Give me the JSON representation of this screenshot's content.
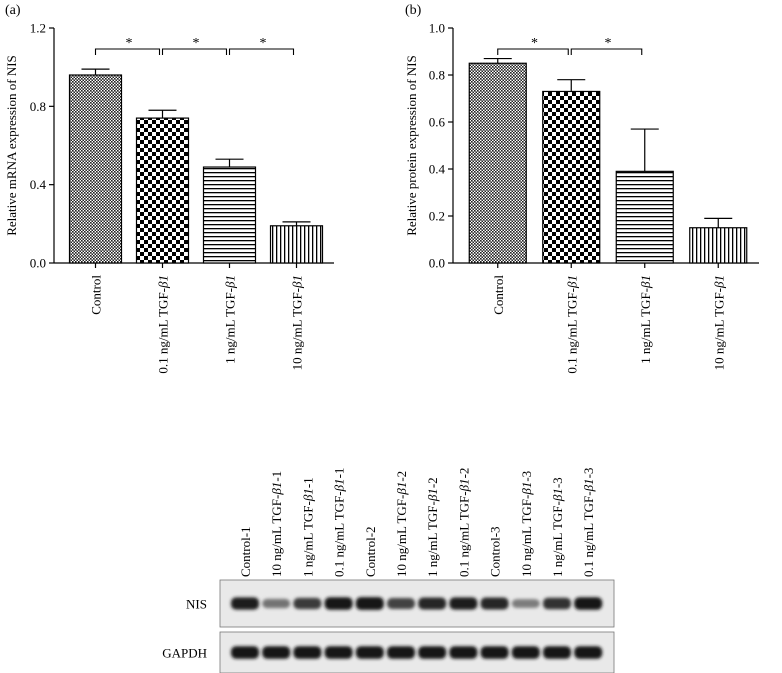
{
  "panel_labels": [
    "(a)",
    "(b)"
  ],
  "chart_data": [
    {
      "type": "bar",
      "panel": "(a)",
      "ylabel": "Relative mRNA expression of NIS",
      "ylim": [
        0,
        1.2
      ],
      "yticks": [
        0.0,
        0.4,
        0.8,
        1.2
      ],
      "ytick_labels": [
        "0.0",
        "0.4",
        "0.8",
        "1.2"
      ],
      "categories": [
        "Control",
        "0.1 ng/mL TGF-β1",
        "1 ng/mL TGF-β1",
        "10 ng/mL TGF-β1"
      ],
      "values": [
        0.96,
        0.74,
        0.49,
        0.19
      ],
      "errors": [
        0.03,
        0.04,
        0.04,
        0.02
      ],
      "patterns": [
        "dense",
        "checker",
        "hlines",
        "vlines"
      ],
      "significance": [
        {
          "from": 0,
          "to": 1,
          "label": "*"
        },
        {
          "from": 1,
          "to": 2,
          "label": "*"
        },
        {
          "from": 2,
          "to": 3,
          "label": "*"
        }
      ],
      "grid": false
    },
    {
      "type": "bar",
      "panel": "(b)",
      "ylabel": "Relative protein expression of NIS",
      "ylim": [
        0,
        1.0
      ],
      "yticks": [
        0.0,
        0.2,
        0.4,
        0.6,
        0.8,
        1.0
      ],
      "ytick_labels": [
        "0.0",
        "0.2",
        "0.4",
        "0.6",
        "0.8",
        "1.0"
      ],
      "categories": [
        "Control",
        "0.1 ng/mL TGF-β1",
        "1 ng/mL TGF-β1",
        "10 ng/mL TGF-β1"
      ],
      "values": [
        0.85,
        0.73,
        0.39,
        0.15
      ],
      "errors": [
        0.02,
        0.05,
        0.18,
        0.04
      ],
      "patterns": [
        "dense",
        "checker",
        "hlines",
        "vlines"
      ],
      "significance": [
        {
          "from": 0,
          "to": 1,
          "label": "*"
        },
        {
          "from": 1,
          "to": 2,
          "label": "*"
        }
      ],
      "grid": false
    }
  ],
  "blot": {
    "lanes": [
      "Control-1",
      "10 ng/mL TGF-β1-1",
      "1 ng/mL TGF-β1-1",
      "0.1 ng/mL TGF-β1-1",
      "Control-2",
      "10 ng/mL TGF-β1-2",
      "1 ng/mL TGF-β1-2",
      "0.1 ng/mL TGF-β1-2",
      "Control-3",
      "10 ng/mL TGF-β1-3",
      "1 ng/mL TGF-β1-3",
      "0.1 ng/mL TGF-β1-3"
    ],
    "rows": [
      {
        "name": "NIS",
        "intensities": [
          0.9,
          0.45,
          0.75,
          0.92,
          0.95,
          0.7,
          0.85,
          0.9,
          0.85,
          0.4,
          0.8,
          0.92
        ]
      },
      {
        "name": "GAPDH",
        "intensities": [
          0.92,
          0.92,
          0.92,
          0.92,
          0.93,
          0.92,
          0.92,
          0.92,
          0.92,
          0.92,
          0.92,
          0.92
        ]
      }
    ]
  }
}
